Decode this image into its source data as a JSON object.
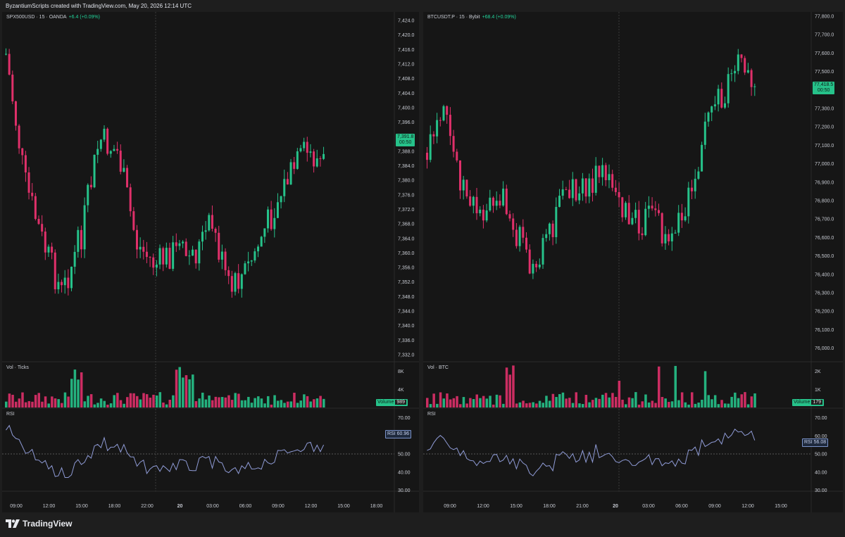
{
  "header": {
    "text": "ByzantiumScripts created with TradingView.com, May 20, 2026 12:14 UTC"
  },
  "brand": {
    "name": "TradingView",
    "icon": "tradingview-logo-icon"
  },
  "colors": {
    "up": "#26c28a",
    "down": "#e0306a",
    "rsi_line": "#8f9bd6",
    "price_tag": "#26c28a",
    "background": "#161616"
  },
  "left_chart": {
    "symbol": "SPX500USD · 15 · OANDA",
    "change": "+6.4 (+0.09%)",
    "price_tag": "7,391.8",
    "countdown": "00:50",
    "price_labels": [
      "7,424.0",
      "7,420.0",
      "7,416.0",
      "7,412.0",
      "7,408.0",
      "7,404.0",
      "7,400.0",
      "7,396.0",
      "7,392.0",
      "7,388.0",
      "7,384.0",
      "7,380.0",
      "7,376.0",
      "7,372.0",
      "7,368.0",
      "7,364.0",
      "7,360.0",
      "7,356.0",
      "7,352.0",
      "7,348.0",
      "7,344.0",
      "7,340.0",
      "7,336.0",
      "7,332.0"
    ],
    "volume_pane": {
      "title": "Vol · Ticks",
      "labels": [
        "8K",
        "4K"
      ],
      "tag_label": "Volume",
      "tag_value": "989"
    },
    "rsi_pane": {
      "title": "RSI",
      "labels": [
        "70.00",
        "60.00",
        "50.00",
        "40.00",
        "30.00"
      ],
      "tag_label": "RSI",
      "tag_value": "60.96"
    },
    "time_labels": [
      "09:00",
      "12:00",
      "15:00",
      "18:00",
      "22:00",
      "20",
      "03:00",
      "06:00",
      "09:00",
      "12:00",
      "15:00",
      "18:00"
    ]
  },
  "right_chart": {
    "symbol": "BTCUSDT.P · 15 · Bybit",
    "change": "+68.4 (+0.09%)",
    "price_tag": "77,418.5",
    "countdown": "00:50",
    "price_labels": [
      "77,800.0",
      "77,700.0",
      "77,600.0",
      "77,500.0",
      "77,400.0",
      "77,300.0",
      "77,200.0",
      "77,100.0",
      "77,000.0",
      "76,900.0",
      "76,800.0",
      "76,700.0",
      "76,600.0",
      "76,500.0",
      "76,400.0",
      "76,300.0",
      "76,200.0",
      "76,100.0",
      "76,000.0"
    ],
    "volume_pane": {
      "title": "Vol · BTC",
      "labels": [
        "2K",
        "1K"
      ],
      "tag_label": "Volume",
      "tag_value": "179"
    },
    "rsi_pane": {
      "title": "RSI",
      "labels": [
        "70.00",
        "60.00",
        "50.00",
        "40.00",
        "30.00"
      ],
      "tag_label": "RSI",
      "tag_value": "56.08"
    },
    "time_labels": [
      "09:00",
      "12:00",
      "15:00",
      "18:00",
      "21:00",
      "20",
      "03:00",
      "06:00",
      "09:00",
      "12:00",
      "15:00"
    ]
  }
}
